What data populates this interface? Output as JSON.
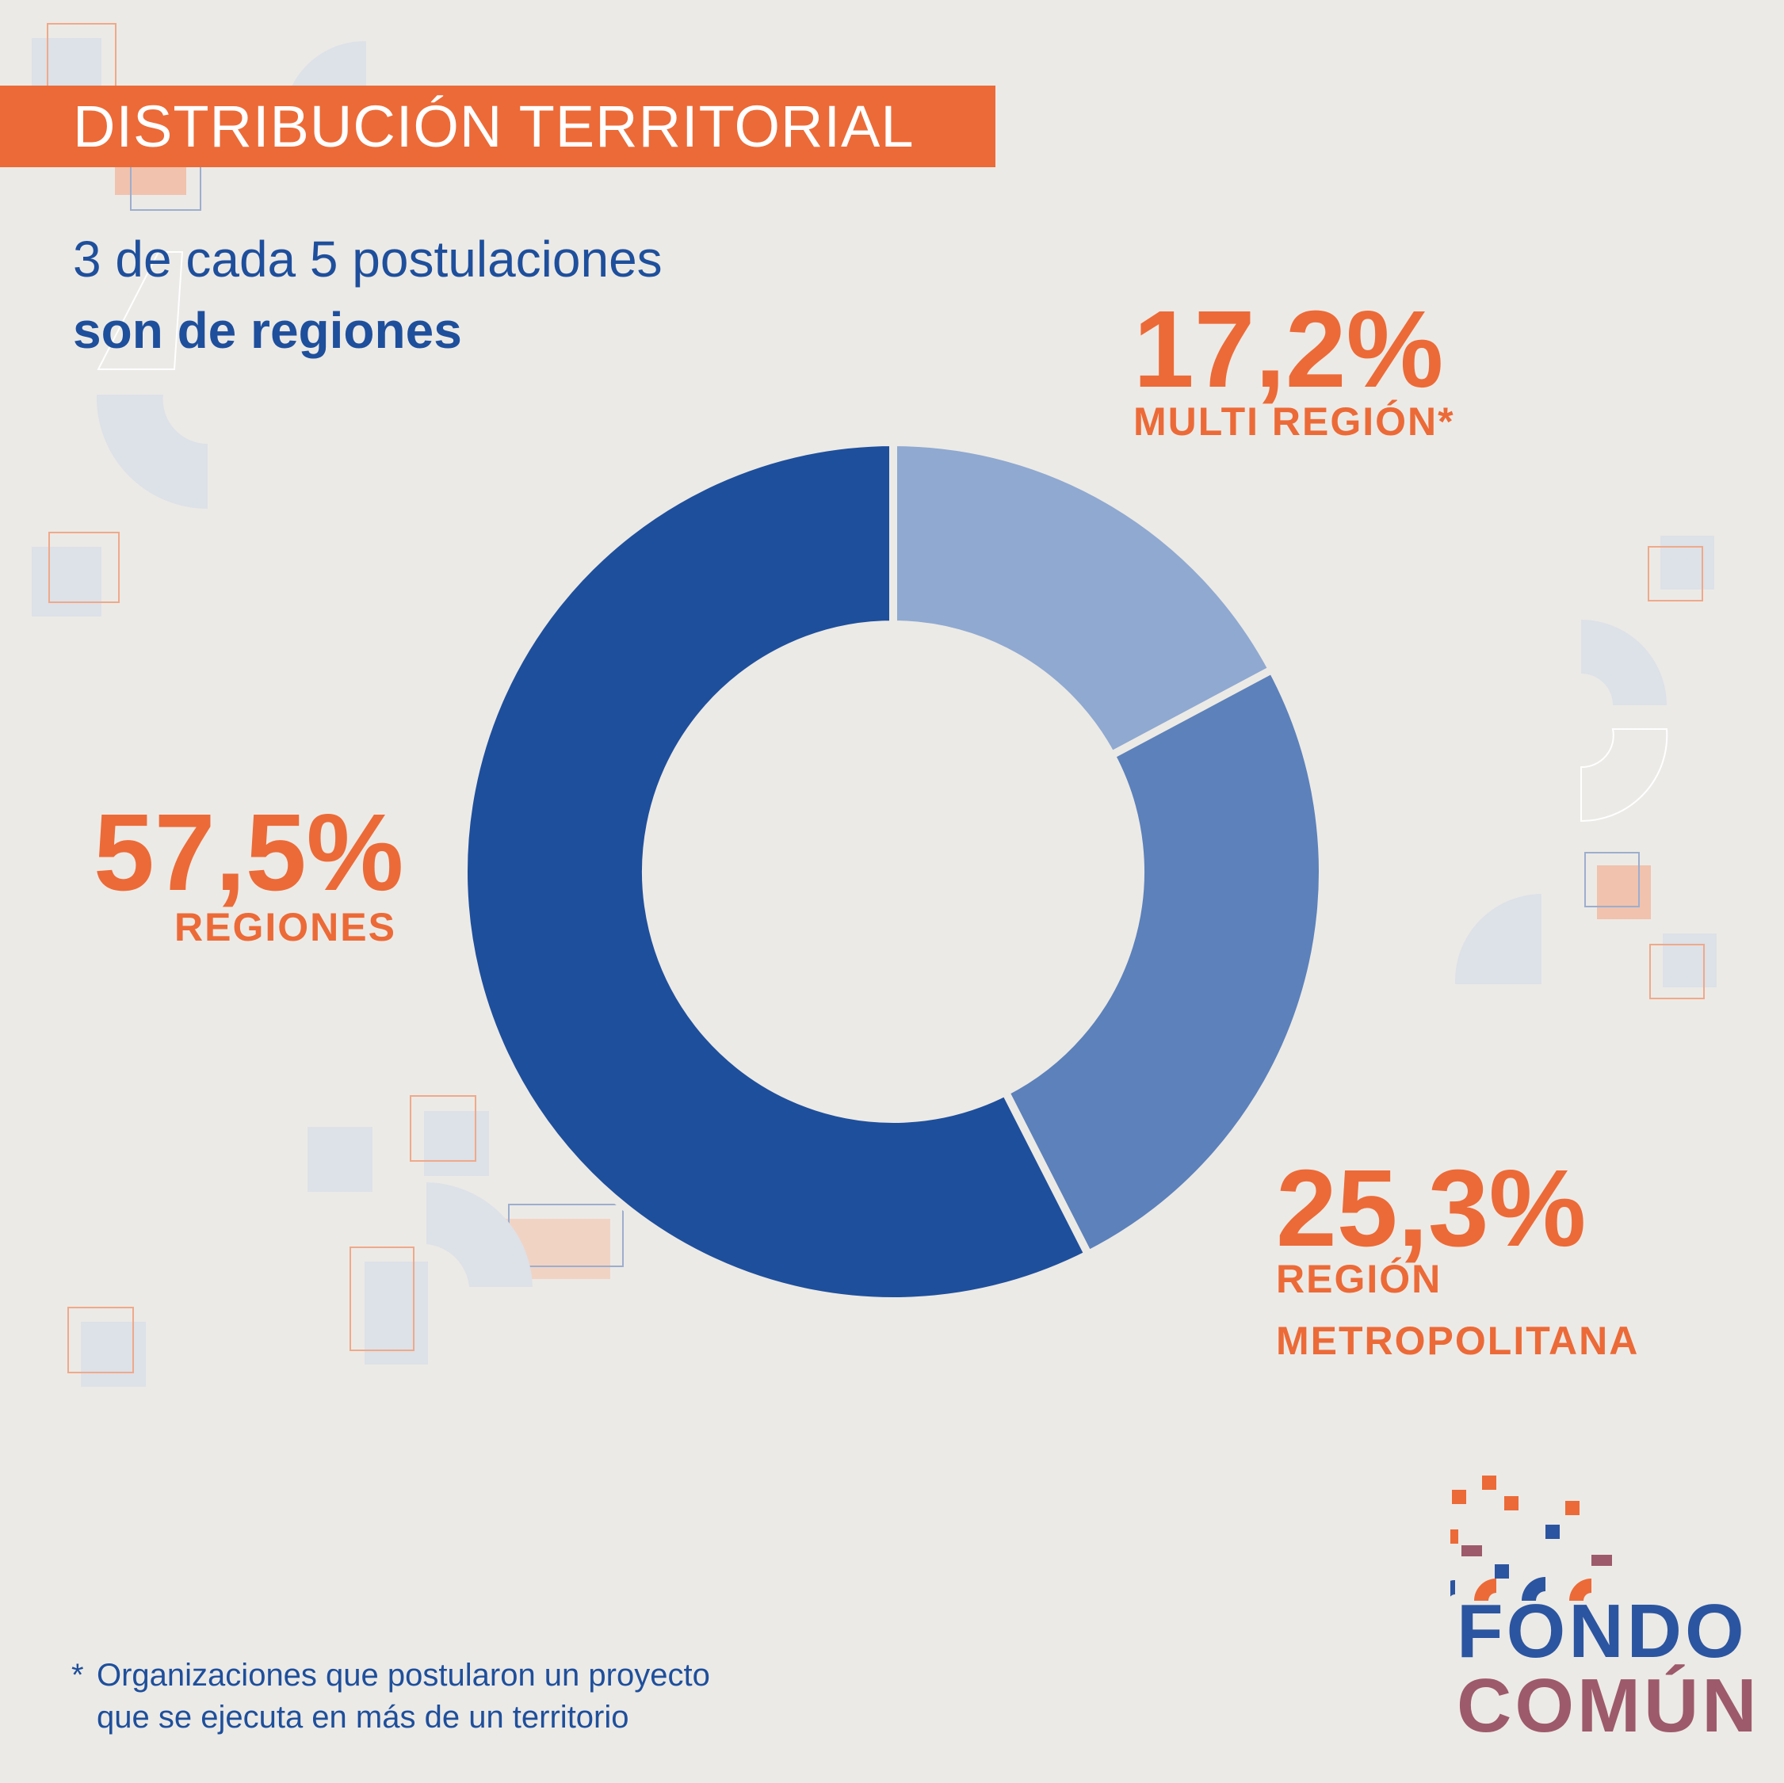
{
  "header": {
    "title": "DISTRIBUCIÓN TERRITORIAL",
    "subtitle_line1": "3 de cada 5 postulaciones",
    "subtitle_line2": "son de regiones"
  },
  "chart_data": {
    "type": "pie",
    "style": "donut",
    "slices": [
      {
        "label": "MULTI REGIÓN*",
        "value": 17.2,
        "value_text": "17,2%",
        "color": "#8FA9D1"
      },
      {
        "label": "REGIÓN METROPOLITANA",
        "value": 25.3,
        "value_text": "25,3%",
        "color": "#5C81BB"
      },
      {
        "label": "REGIONES",
        "value": 57.5,
        "value_text": "57,5%",
        "color": "#1E4F9C"
      }
    ]
  },
  "labels": {
    "multi_region_pct": "17,2%",
    "multi_region_name": "MULTI REGIÓN*",
    "metropolitana_pct": "25,3%",
    "metropolitana_name_1": "REGIÓN",
    "metropolitana_name_2": "METROPOLITANA",
    "regiones_pct": "57,5%",
    "regiones_name": "REGIONES"
  },
  "footnote": {
    "star": "*",
    "line1": "Organizaciones que postularon un proyecto",
    "line2": "que se ejecuta en más de un territorio"
  },
  "logo": {
    "line1": "FONDO",
    "line2": "COMÚN"
  },
  "colors": {
    "accent_orange": "#EC6A37",
    "brand_blue": "#1E4F9C",
    "background": "#ECEAE6"
  }
}
